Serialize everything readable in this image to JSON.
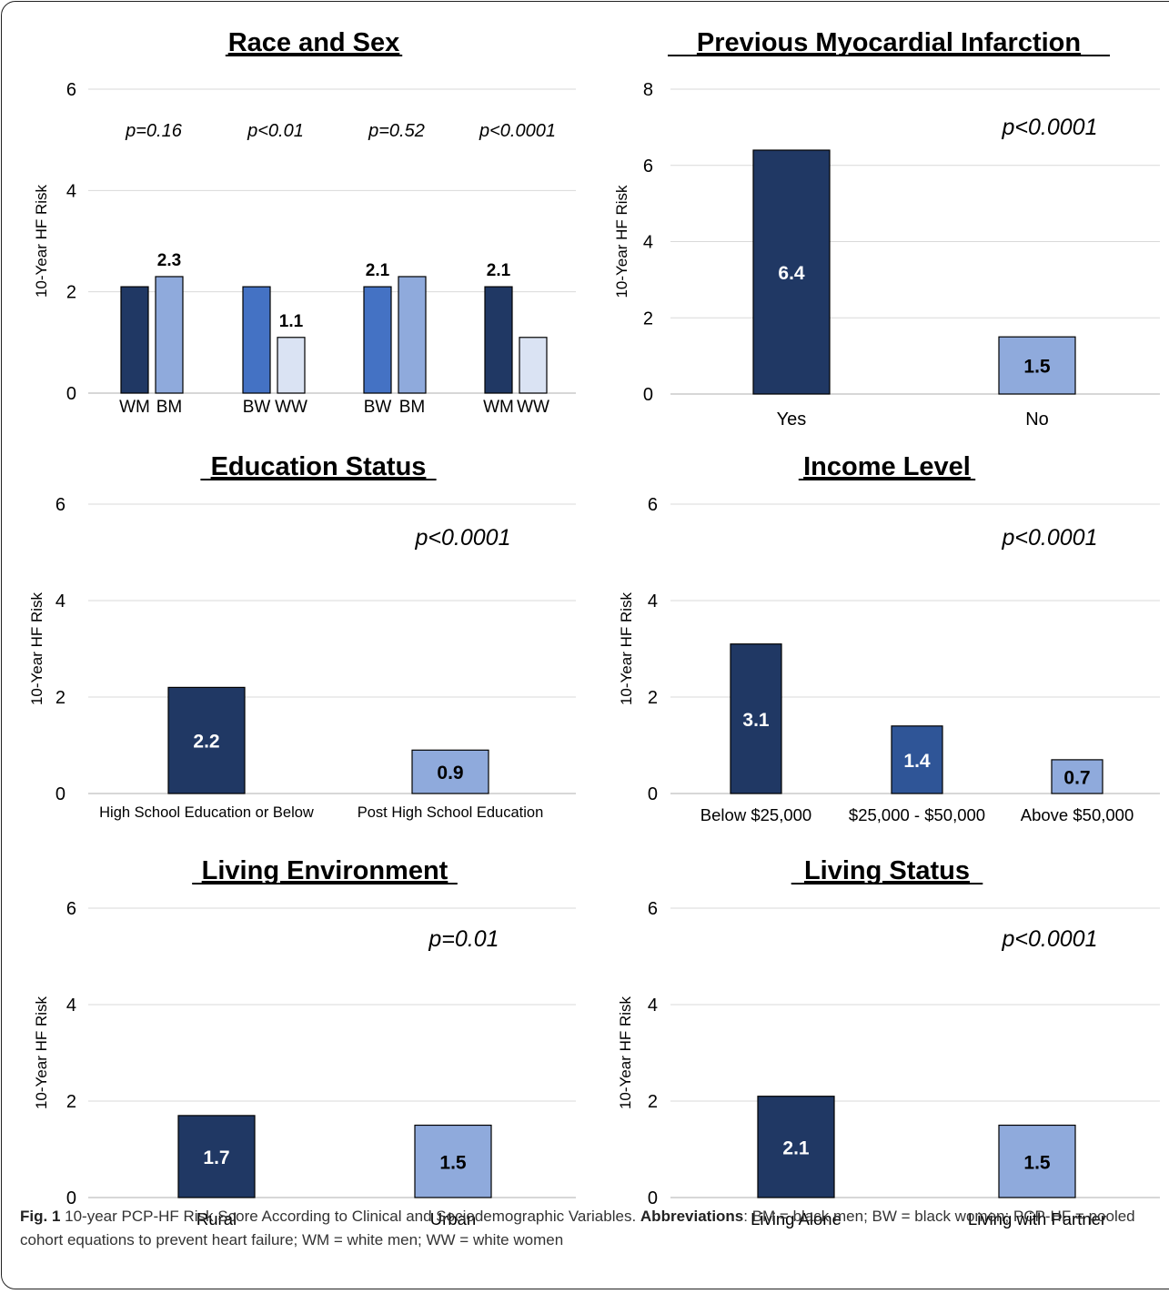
{
  "colors": {
    "dark_navy": "#203864",
    "medium_blue": "#4472C4",
    "light_blue": "#8FAADC",
    "pale_blue": "#DAE3F3",
    "mid_dark_blue": "#2F5597",
    "gridline": "#d9d9d9"
  },
  "caption": {
    "fig_label": "Fig. 1",
    "text": "10-year PCP-HF Risk Score According to Clinical and Sociodemographic Variables.",
    "abbr_label": "Abbreviations",
    "abbr_text": ": BM = black men; BW = black women; PCP-HF = pooled cohort equations to prevent heart failure; WM = white men; WW = white women"
  },
  "chart_data": [
    {
      "id": "race-sex",
      "type": "bar",
      "title": "Race and Sex",
      "ylabel": "10-Year HF Risk",
      "ylim": [
        0,
        6
      ],
      "yticks": [
        0,
        2,
        4,
        6
      ],
      "grid": true,
      "groups": [
        {
          "p": "p=0.16",
          "bars": [
            {
              "label": "WM",
              "value": 2.1,
              "color": "#203864",
              "data_label": ""
            },
            {
              "label": "BM",
              "value": 2.3,
              "color": "#8FAADC",
              "data_label": "2.3"
            }
          ]
        },
        {
          "p": "p<0.01",
          "bars": [
            {
              "label": "BW",
              "value": 2.1,
              "color": "#4472C4",
              "data_label": ""
            },
            {
              "label": "WW",
              "value": 1.1,
              "color": "#DAE3F3",
              "data_label": "1.1"
            }
          ]
        },
        {
          "p": "p=0.52",
          "bars": [
            {
              "label": "BW",
              "value": 2.1,
              "color": "#4472C4",
              "data_label": "2.1"
            },
            {
              "label": "BM",
              "value": 2.3,
              "color": "#8FAADC",
              "data_label": ""
            }
          ]
        },
        {
          "p": "p<0.0001",
          "bars": [
            {
              "label": "WM",
              "value": 2.1,
              "color": "#203864",
              "data_label": "2.1"
            },
            {
              "label": "WW",
              "value": 1.1,
              "color": "#DAE3F3",
              "data_label": ""
            }
          ]
        }
      ]
    },
    {
      "id": "prev-mi",
      "type": "bar",
      "title": "Previous Myocardial Infarction",
      "ylabel": "10-Year HF Risk",
      "ylim": [
        0,
        8
      ],
      "yticks": [
        0,
        2,
        4,
        6,
        8
      ],
      "grid": true,
      "p": "p<0.0001",
      "categories": [
        "Yes",
        "No"
      ],
      "values": [
        6.4,
        1.5
      ],
      "data_labels": [
        "6.4",
        "1.5"
      ],
      "colors": [
        "#203864",
        "#8FAADC"
      ]
    },
    {
      "id": "education",
      "type": "bar",
      "title": "Education Status",
      "ylabel": "10-Year HF Risk",
      "ylim": [
        0,
        6
      ],
      "yticks": [
        0,
        2,
        4,
        6
      ],
      "grid": true,
      "p": "p<0.0001",
      "categories": [
        "High School Education or Below",
        "Post High School Education"
      ],
      "values": [
        2.2,
        0.9
      ],
      "data_labels": [
        "2.2",
        "0.9"
      ],
      "colors": [
        "#203864",
        "#8FAADC"
      ]
    },
    {
      "id": "income",
      "type": "bar",
      "title": "Income Level",
      "ylabel": "10-Year HF Risk",
      "ylim": [
        0,
        6
      ],
      "yticks": [
        0,
        2,
        4,
        6
      ],
      "grid": true,
      "p": "p<0.0001",
      "categories": [
        "Below $25,000",
        "$25,000 - $50,000",
        "Above $50,000"
      ],
      "values": [
        3.1,
        1.4,
        0.7
      ],
      "data_labels": [
        "3.1",
        "1.4",
        "0.7"
      ],
      "colors": [
        "#203864",
        "#2F5597",
        "#8FAADC"
      ]
    },
    {
      "id": "living-env",
      "type": "bar",
      "title": "Living Environment",
      "ylabel": "10-Year  HF Risk",
      "ylim": [
        0,
        6
      ],
      "yticks": [
        0,
        2,
        4,
        6
      ],
      "grid": true,
      "p": "p=0.01",
      "categories": [
        "Rural",
        "Urban"
      ],
      "values": [
        1.7,
        1.5
      ],
      "data_labels": [
        "1.7",
        "1.5"
      ],
      "colors": [
        "#203864",
        "#8FAADC"
      ]
    },
    {
      "id": "living-status",
      "type": "bar",
      "title": "Living Status",
      "ylabel": "10-Year HF Risk",
      "ylim": [
        0,
        6
      ],
      "yticks": [
        0,
        2,
        4,
        6
      ],
      "grid": true,
      "p": "p<0.0001",
      "categories": [
        "Living Alone",
        "Living with Partner"
      ],
      "values": [
        2.1,
        1.5
      ],
      "data_labels": [
        "2.1",
        "1.5"
      ],
      "colors": [
        "#203864",
        "#8FAADC"
      ]
    }
  ]
}
